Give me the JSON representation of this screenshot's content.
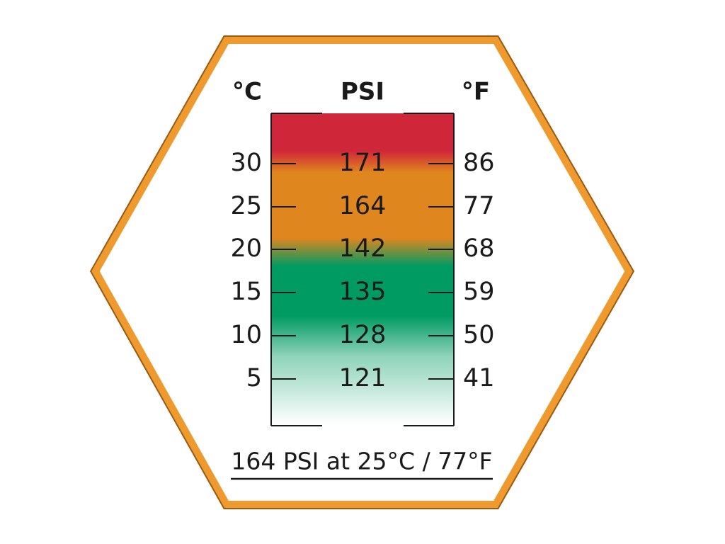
{
  "headers": {
    "celsius": "°C",
    "psi": "PSI",
    "fahrenheit": "°F"
  },
  "rows": [
    {
      "celsius": 30,
      "psi": 171,
      "fahrenheit": 86
    },
    {
      "celsius": 25,
      "psi": 164,
      "fahrenheit": 77
    },
    {
      "celsius": 20,
      "psi": 142,
      "fahrenheit": 68
    },
    {
      "celsius": 15,
      "psi": 135,
      "fahrenheit": 59
    },
    {
      "celsius": 10,
      "psi": 128,
      "fahrenheit": 50
    },
    {
      "celsius": 5,
      "psi": 121,
      "fahrenheit": 41
    }
  ],
  "caption": "164 PSI at 25°C / 77°F"
}
